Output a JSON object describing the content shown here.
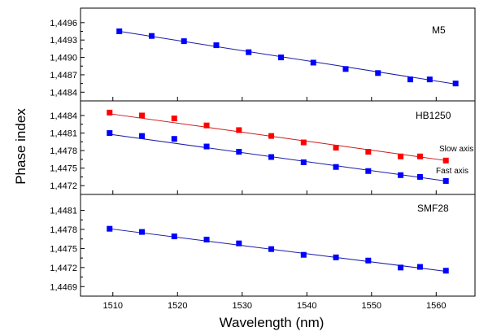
{
  "chart_data": {
    "type": "scatter",
    "xlabel": "Wavelength (nm)",
    "ylabel": "Phase index",
    "xlim": [
      1505,
      1566
    ],
    "xticks": [
      "1510",
      "1520",
      "1530",
      "1540",
      "1550",
      "1560"
    ],
    "xtick_values": [
      1510,
      1520,
      1530,
      1540,
      1550,
      1560
    ],
    "grid": false,
    "colors": {
      "blue": "#0000ff",
      "red": "#ff0000",
      "line_blue": "#1a1aa6",
      "line_red": "#cc1a1a",
      "axis": "#000000"
    },
    "panels": [
      {
        "label": "M5",
        "ylim": [
          1.44825,
          1.44985
        ],
        "yticks": [
          "1,4484",
          "1,4487",
          "1,4490",
          "1,4493",
          "1,4496"
        ],
        "ytick_values": [
          1.4484,
          1.4487,
          1.449,
          1.4493,
          1.4496
        ],
        "series": [
          {
            "color": "#0000ff",
            "fit_color": "#1a1aa6",
            "x": [
              1511,
              1516,
              1521,
              1526,
              1531,
              1536,
              1541,
              1546,
              1551,
              1556,
              1559,
              1563
            ],
            "y": [
              1.44945,
              1.44937,
              1.44928,
              1.44921,
              1.44909,
              1.449,
              1.44891,
              1.4488,
              1.44873,
              1.44862,
              1.44862,
              1.44855
            ],
            "fit": [
              [
                1511,
                1.44945
              ],
              [
                1563,
                1.44854
              ]
            ]
          }
        ]
      },
      {
        "label": "HB1250",
        "ylim": [
          1.44705,
          1.44865
        ],
        "yticks": [
          "1,4472",
          "1,4475",
          "1,4478",
          "1,4481",
          "1,4484"
        ],
        "ytick_values": [
          1.4472,
          1.4475,
          1.4478,
          1.4481,
          1.4484
        ],
        "series": [
          {
            "name": "Slow axis",
            "color": "#ff0000",
            "fit_color": "#cc1a1a",
            "x": [
              1509.5,
              1514.5,
              1519.5,
              1524.5,
              1529.5,
              1534.5,
              1539.5,
              1544.5,
              1549.5,
              1554.5,
              1557.5,
              1561.5
            ],
            "y": [
              1.44845,
              1.4484,
              1.44835,
              1.44823,
              1.44815,
              1.44805,
              1.44794,
              1.44785,
              1.44778,
              1.4477,
              1.4477,
              1.44763
            ],
            "fit": [
              [
                1509.5,
                1.44843
              ],
              [
                1561.5,
                1.44763
              ]
            ]
          },
          {
            "name": "Fast axis",
            "color": "#0000ff",
            "fit_color": "#1a1aa6",
            "x": [
              1509.5,
              1514.5,
              1519.5,
              1524.5,
              1529.5,
              1534.5,
              1539.5,
              1544.5,
              1549.5,
              1554.5,
              1557.5,
              1561.5
            ],
            "y": [
              1.4481,
              1.44805,
              1.448,
              1.44787,
              1.44778,
              1.44769,
              1.4476,
              1.44752,
              1.44745,
              1.44738,
              1.44735,
              1.44728
            ],
            "fit": [
              [
                1509.5,
                1.44808
              ],
              [
                1561.5,
                1.44728
              ]
            ]
          }
        ]
      },
      {
        "label": "SMF28",
        "ylim": [
          1.44675,
          1.44835
        ],
        "yticks": [
          "1,4469",
          "1,4472",
          "1,4475",
          "1,4478",
          "1,4481"
        ],
        "ytick_values": [
          1.4469,
          1.4472,
          1.4475,
          1.4478,
          1.4481
        ],
        "series": [
          {
            "color": "#0000ff",
            "fit_color": "#1a1aa6",
            "x": [
              1509.5,
              1514.5,
              1519.5,
              1524.5,
              1529.5,
              1534.5,
              1539.5,
              1544.5,
              1549.5,
              1554.5,
              1557.5,
              1561.5
            ],
            "y": [
              1.44781,
              1.44776,
              1.44769,
              1.44764,
              1.44758,
              1.44749,
              1.4474,
              1.44736,
              1.44731,
              1.4472,
              1.44721,
              1.44715
            ],
            "fit": [
              [
                1509.5,
                1.44781
              ],
              [
                1561.5,
                1.44714
              ]
            ]
          }
        ]
      }
    ]
  }
}
